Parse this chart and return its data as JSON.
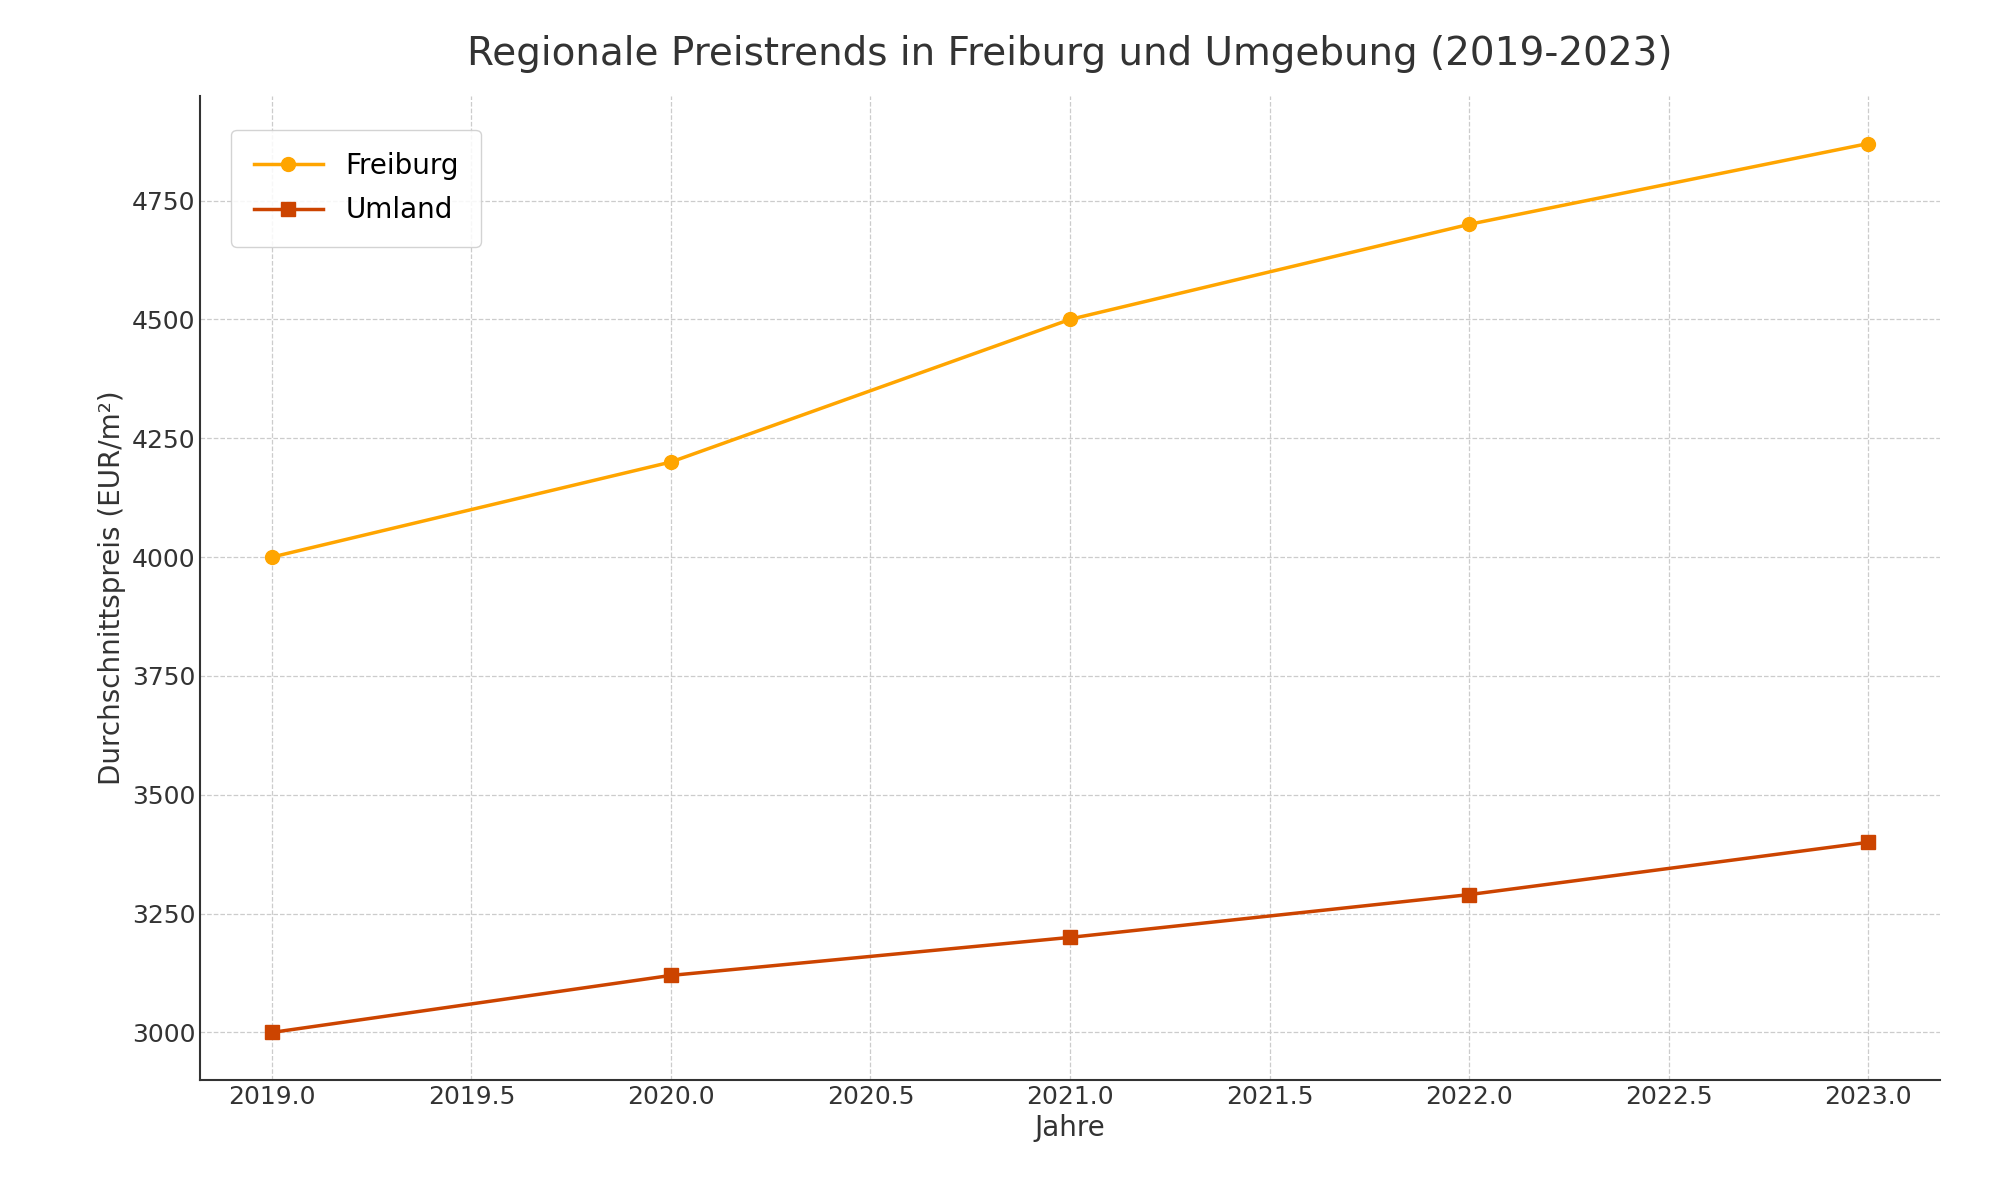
{
  "title": "Regionale Preistrends in Freiburg und Umgebung (2019-2023)",
  "xlabel": "Jahre",
  "ylabel": "Durchschnittspreis (EUR/m²)",
  "years": [
    2019,
    2020,
    2021,
    2022,
    2023
  ],
  "freiburg": {
    "label": "Freiburg",
    "values": [
      4000,
      4200,
      4500,
      4700,
      4870
    ],
    "color": "#FFA500",
    "marker": "o",
    "markersize": 10,
    "linewidth": 2.5
  },
  "umland": {
    "label": "Umland",
    "values": [
      3000,
      3120,
      3200,
      3290,
      3400
    ],
    "color": "#CC4400",
    "marker": "s",
    "markersize": 10,
    "linewidth": 2.5
  },
  "ylim": [
    2900,
    4970
  ],
  "xlim": [
    2018.82,
    2023.18
  ],
  "background_color": "#ffffff",
  "grid_color": "#cccccc",
  "title_fontsize": 28,
  "label_fontsize": 20,
  "tick_fontsize": 18,
  "legend_fontsize": 20,
  "ytick_interval": 250
}
